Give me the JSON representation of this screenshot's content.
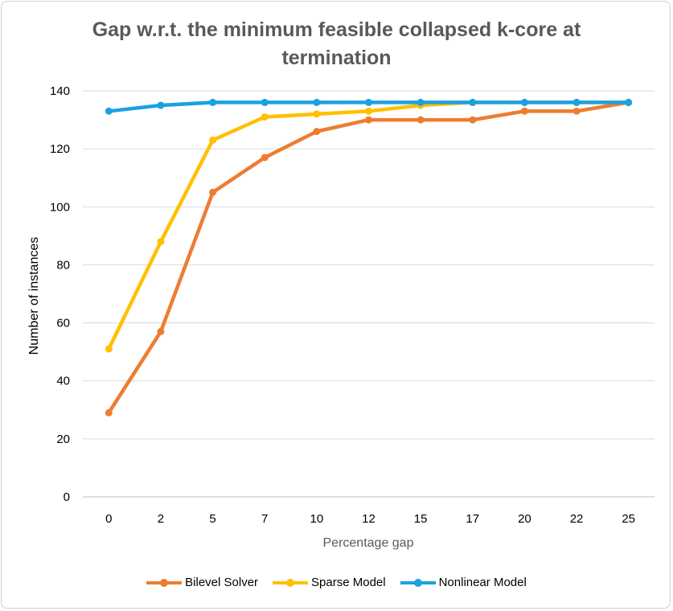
{
  "chart_data": {
    "type": "line",
    "title": "Gap w.r.t. the minimum feasible collapsed k-core at termination",
    "xlabel": "Percentage gap",
    "ylabel": "Number of instances",
    "categories": [
      "0",
      "2",
      "5",
      "7",
      "10",
      "12",
      "15",
      "17",
      "20",
      "22",
      "25"
    ],
    "ylim": [
      0,
      140
    ],
    "yticks": [
      0,
      20,
      40,
      60,
      80,
      100,
      120,
      140
    ],
    "grid": "horizontal",
    "legend": "bottom",
    "series": [
      {
        "name": "Bilevel Solver",
        "color": "#ED7D31",
        "values": [
          29,
          57,
          105,
          117,
          126,
          130,
          130,
          130,
          133,
          133,
          136
        ]
      },
      {
        "name": "Sparse Model",
        "color": "#FFC000",
        "values": [
          51,
          88,
          123,
          131,
          132,
          133,
          135,
          136,
          136,
          136,
          136
        ]
      },
      {
        "name": "Nonlinear Model",
        "color": "#1BA1E2",
        "values": [
          133,
          135,
          136,
          136,
          136,
          136,
          136,
          136,
          136,
          136,
          136
        ]
      }
    ]
  }
}
